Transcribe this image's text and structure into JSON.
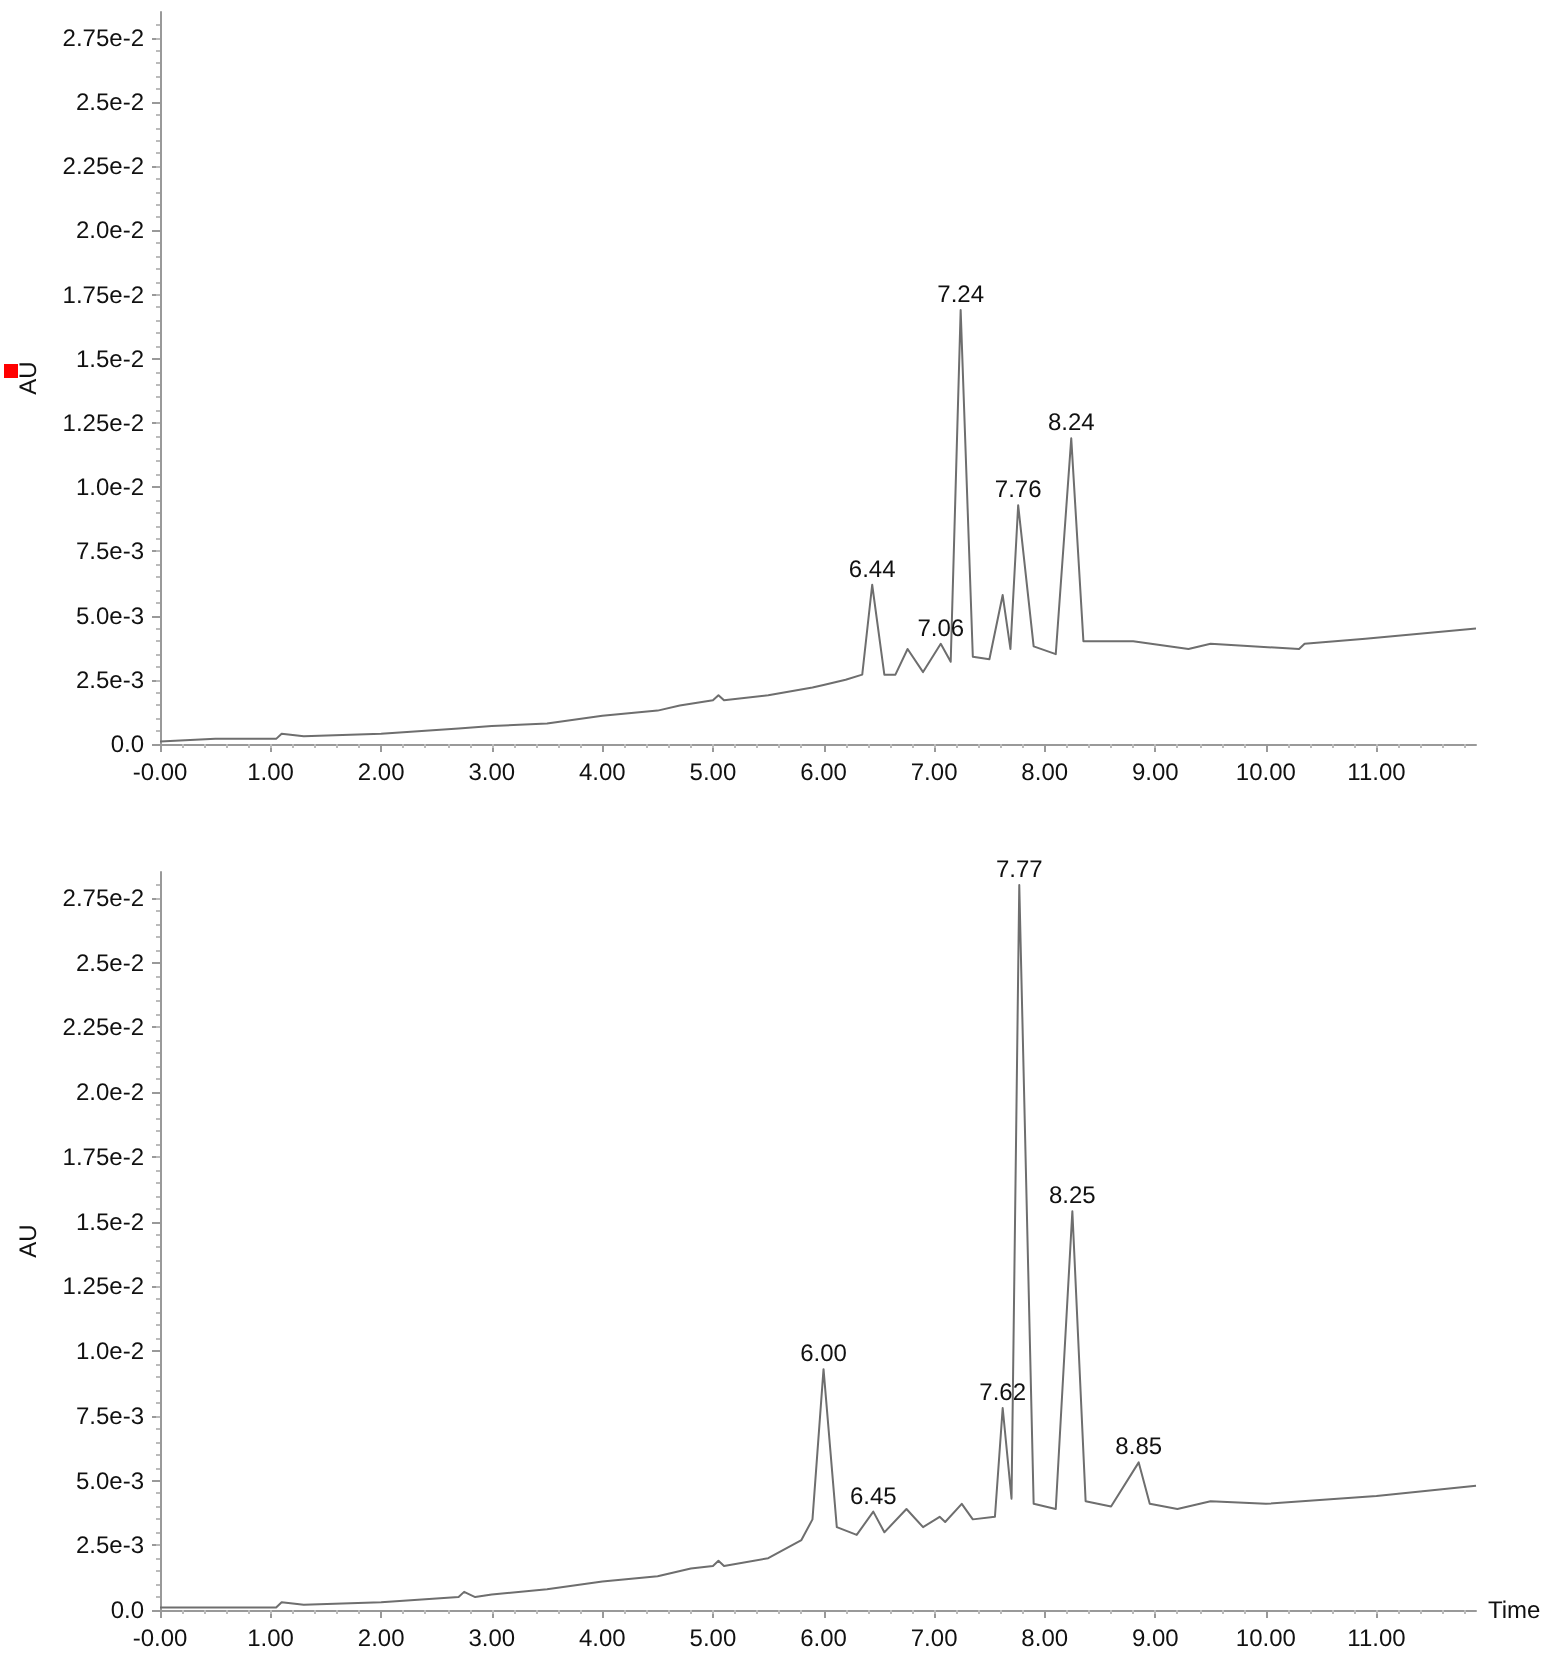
{
  "chart_data": [
    {
      "type": "line",
      "ylabel": "AU",
      "color": "#6e6e6e",
      "marker": "none",
      "grid": false,
      "x": [
        0,
        0.5,
        1.05,
        1.1,
        1.3,
        2,
        2.7,
        3,
        3.5,
        4,
        4.5,
        4.7,
        5,
        5.05,
        5.1,
        5.5,
        5.9,
        6,
        6.2,
        6.35,
        6.44,
        6.55,
        6.65,
        6.76,
        6.9,
        7.06,
        7.15,
        7.24,
        7.35,
        7.5,
        7.62,
        7.69,
        7.76,
        7.9,
        8.1,
        8.24,
        8.35,
        8.8,
        9.3,
        9.5,
        10.3,
        10.35,
        10.9,
        11.9
      ],
      "values": [
        0.0001,
        0.0002,
        0.0002,
        0.0004,
        0.0003,
        0.0004,
        0.0006,
        0.0007,
        0.0008,
        0.0011,
        0.0013,
        0.0015,
        0.0017,
        0.0019,
        0.0017,
        0.0019,
        0.0022,
        0.0023,
        0.0025,
        0.0027,
        0.0062,
        0.0027,
        0.0027,
        0.0037,
        0.0028,
        0.0039,
        0.0032,
        0.0169,
        0.0034,
        0.0033,
        0.0058,
        0.0037,
        0.0093,
        0.0038,
        0.0035,
        0.0119,
        0.004,
        0.004,
        0.0037,
        0.0039,
        0.0037,
        0.0039,
        0.0041,
        0.0045
      ],
      "xlim": [
        0,
        11.9
      ],
      "ylim": [
        0,
        0.0285
      ],
      "xticks": [
        {
          "value": 0,
          "label": "-0.00"
        },
        {
          "value": 1,
          "label": "1.00"
        },
        {
          "value": 2,
          "label": "2.00"
        },
        {
          "value": 3,
          "label": "3.00"
        },
        {
          "value": 4,
          "label": "4.00"
        },
        {
          "value": 5,
          "label": "5.00"
        },
        {
          "value": 6,
          "label": "6.00"
        },
        {
          "value": 7,
          "label": "7.00"
        },
        {
          "value": 8,
          "label": "8.00"
        },
        {
          "value": 9,
          "label": "9.00"
        },
        {
          "value": 10,
          "label": "10.00"
        },
        {
          "value": 11,
          "label": "11.00"
        }
      ],
      "yticks": [
        {
          "value": 0,
          "label": "0.0"
        },
        {
          "value": 0.0025,
          "label": "2.5e-3"
        },
        {
          "value": 0.005,
          "label": "5.0e-3"
        },
        {
          "value": 0.0075,
          "label": "7.5e-3"
        },
        {
          "value": 0.01,
          "label": "1.0e-2"
        },
        {
          "value": 0.0125,
          "label": "1.25e-2"
        },
        {
          "value": 0.015,
          "label": "1.5e-2"
        },
        {
          "value": 0.0175,
          "label": "1.75e-2"
        },
        {
          "value": 0.02,
          "label": "2.0e-2"
        },
        {
          "value": 0.0225,
          "label": "2.25e-2"
        },
        {
          "value": 0.025,
          "label": "2.5e-2"
        },
        {
          "value": 0.0275,
          "label": "2.75e-2"
        }
      ],
      "annotations": [
        {
          "text": "6.44",
          "x": 6.44,
          "y": 0.0062
        },
        {
          "text": "7.06",
          "x": 7.06,
          "y": 0.0039
        },
        {
          "text": "7.24",
          "x": 7.24,
          "y": 0.0169
        },
        {
          "text": "7.76",
          "x": 7.76,
          "y": 0.0093
        },
        {
          "text": "8.24",
          "x": 8.24,
          "y": 0.0119
        }
      ]
    },
    {
      "type": "line",
      "ylabel": "AU",
      "xlabel": "Time",
      "color": "#6e6e6e",
      "marker": "none",
      "grid": false,
      "x": [
        0,
        0.5,
        1.05,
        1.1,
        1.3,
        2,
        2.7,
        2.75,
        2.85,
        3,
        3.5,
        4,
        4.5,
        4.8,
        5,
        5.05,
        5.1,
        5.5,
        5.8,
        5.9,
        6,
        6.12,
        6.3,
        6.45,
        6.55,
        6.75,
        6.9,
        7.05,
        7.1,
        7.25,
        7.35,
        7.55,
        7.62,
        7.7,
        7.77,
        7.9,
        8.1,
        8.25,
        8.37,
        8.6,
        8.85,
        8.95,
        9.2,
        9.5,
        10,
        11,
        11.9
      ],
      "values": [
        0.0001,
        0.0001,
        0.0001,
        0.0003,
        0.0002,
        0.0003,
        0.0005,
        0.0007,
        0.0005,
        0.0006,
        0.0008,
        0.0011,
        0.0013,
        0.0016,
        0.0017,
        0.0019,
        0.0017,
        0.002,
        0.0027,
        0.0035,
        0.0093,
        0.0032,
        0.0029,
        0.0038,
        0.003,
        0.0039,
        0.0032,
        0.0036,
        0.0034,
        0.0041,
        0.0035,
        0.0036,
        0.0078,
        0.0043,
        0.028,
        0.0041,
        0.0039,
        0.0154,
        0.0042,
        0.004,
        0.0057,
        0.0041,
        0.0039,
        0.0042,
        0.0041,
        0.0044,
        0.0048
      ],
      "xlim": [
        0,
        11.9
      ],
      "ylim": [
        0,
        0.0285
      ],
      "xticks": [
        {
          "value": 0,
          "label": "-0.00"
        },
        {
          "value": 1,
          "label": "1.00"
        },
        {
          "value": 2,
          "label": "2.00"
        },
        {
          "value": 3,
          "label": "3.00"
        },
        {
          "value": 4,
          "label": "4.00"
        },
        {
          "value": 5,
          "label": "5.00"
        },
        {
          "value": 6,
          "label": "6.00"
        },
        {
          "value": 7,
          "label": "7.00"
        },
        {
          "value": 8,
          "label": "8.00"
        },
        {
          "value": 9,
          "label": "9.00"
        },
        {
          "value": 10,
          "label": "10.00"
        },
        {
          "value": 11,
          "label": "11.00"
        }
      ],
      "yticks": [
        {
          "value": 0,
          "label": "0.0"
        },
        {
          "value": 0.0025,
          "label": "2.5e-3"
        },
        {
          "value": 0.005,
          "label": "5.0e-3"
        },
        {
          "value": 0.0075,
          "label": "7.5e-3"
        },
        {
          "value": 0.01,
          "label": "1.0e-2"
        },
        {
          "value": 0.0125,
          "label": "1.25e-2"
        },
        {
          "value": 0.015,
          "label": "1.5e-2"
        },
        {
          "value": 0.0175,
          "label": "1.75e-2"
        },
        {
          "value": 0.02,
          "label": "2.0e-2"
        },
        {
          "value": 0.0225,
          "label": "2.25e-2"
        },
        {
          "value": 0.025,
          "label": "2.5e-2"
        },
        {
          "value": 0.0275,
          "label": "2.75e-2"
        }
      ],
      "annotations": [
        {
          "text": "6.00",
          "x": 6.0,
          "y": 0.0093
        },
        {
          "text": "6.45",
          "x": 6.45,
          "y": 0.0038
        },
        {
          "text": "7.62",
          "x": 7.62,
          "y": 0.0078
        },
        {
          "text": "7.77",
          "x": 7.77,
          "y": 0.028
        },
        {
          "text": "8.25",
          "x": 8.25,
          "y": 0.0154
        },
        {
          "text": "8.85",
          "x": 8.85,
          "y": 0.0057
        }
      ]
    }
  ]
}
